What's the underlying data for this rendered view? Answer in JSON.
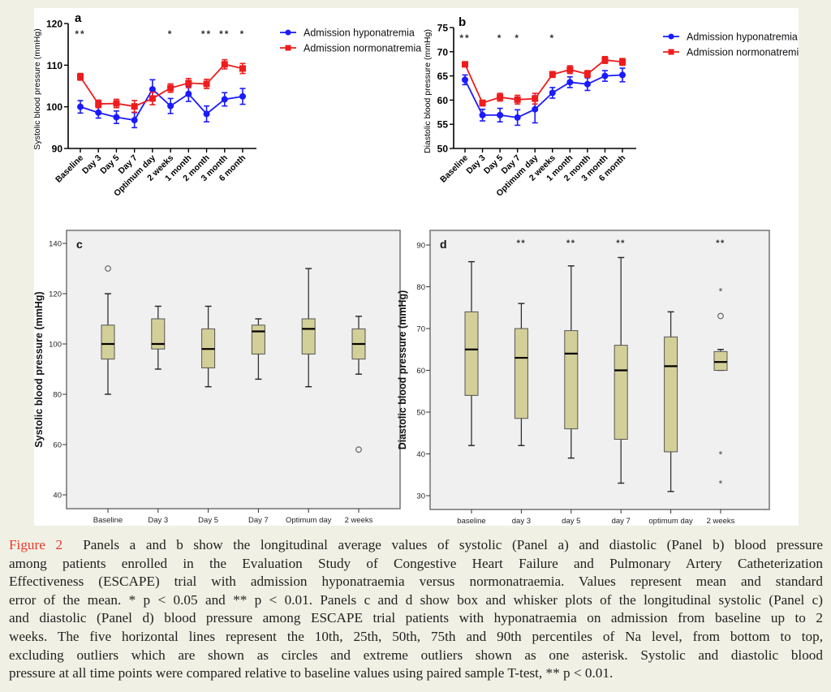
{
  "chart_data": [
    {
      "panel": "a",
      "type": "line",
      "title": "a",
      "xlabel": "",
      "ylabel": "Systolic blood pressure (mmHg)",
      "ylim": [
        90,
        120
      ],
      "yticks": [
        90,
        100,
        110,
        120
      ],
      "categories": [
        "Baseline",
        "Day 3",
        "Day 5",
        "Day 7",
        "Optimum day",
        "2 weeks",
        "1 month",
        "2 month",
        "3 month",
        "6 month"
      ],
      "significance": [
        "**",
        "",
        "",
        "",
        "",
        "*",
        "",
        "**",
        "**",
        "*"
      ],
      "legend_position": "top-right",
      "error_bars": "SEM",
      "series": [
        {
          "name": "Admission hyponatremia",
          "color": "#1a1aff",
          "marker": "circle",
          "values": [
            100.0,
            98.6,
            97.5,
            96.8,
            104.2,
            100.2,
            103.1,
            98.3,
            101.8,
            102.5
          ],
          "errors": [
            1.5,
            1.3,
            1.5,
            1.8,
            2.3,
            1.8,
            1.8,
            1.9,
            1.6,
            1.9
          ]
        },
        {
          "name": "Admission normonatremia",
          "color": "#ee1c1c",
          "marker": "square",
          "values": [
            107.2,
            100.7,
            100.8,
            100.1,
            102.0,
            104.5,
            105.7,
            105.5,
            110.2,
            109.2
          ],
          "errors": [
            0.8,
            0.9,
            1.0,
            1.4,
            1.5,
            1.0,
            1.1,
            1.1,
            1.1,
            1.2
          ]
        }
      ]
    },
    {
      "panel": "b",
      "type": "line",
      "title": "b",
      "xlabel": "",
      "ylabel": "Diastolic blood pressure (mmHg)",
      "ylim": [
        50,
        75
      ],
      "yticks": [
        50,
        55,
        60,
        65,
        70,
        75
      ],
      "categories": [
        "Baseline",
        "Day 3",
        "Day 5",
        "Day 7",
        "Optimum day",
        "2 weeks",
        "1 month",
        "2 month",
        "3 month",
        "6 month"
      ],
      "significance": [
        "**",
        "",
        "*",
        "*",
        "",
        "*",
        "",
        "",
        "",
        ""
      ],
      "legend_position": "top-right",
      "error_bars": "SEM",
      "series": [
        {
          "name": "Admission hyponatremia",
          "color": "#1a1aff",
          "marker": "circle",
          "values": [
            64.2,
            56.9,
            56.9,
            56.4,
            58.1,
            61.5,
            63.7,
            63.3,
            65.0,
            65.2
          ],
          "errors": [
            1.0,
            1.2,
            1.4,
            1.6,
            2.8,
            1.1,
            1.1,
            1.3,
            1.1,
            1.4
          ]
        },
        {
          "name": "Admission normonatremia",
          "color": "#ee1c1c",
          "marker": "square",
          "values": [
            67.4,
            59.4,
            60.6,
            60.1,
            60.3,
            65.3,
            66.3,
            65.4,
            68.3,
            67.9
          ],
          "errors": [
            0.5,
            0.6,
            0.8,
            0.9,
            1.1,
            0.6,
            0.8,
            0.7,
            0.7,
            0.7
          ]
        }
      ]
    },
    {
      "panel": "c",
      "type": "box",
      "title": "c",
      "xlabel": "",
      "ylabel": "Systolic blood pressure (mmHg)",
      "ylim": [
        35,
        145
      ],
      "yticks": [
        40,
        60,
        80,
        100,
        120,
        140
      ],
      "grid": false,
      "box_color": "#d3cf98",
      "categories": [
        "Baseline",
        "Day 3",
        "Day 5",
        "Day 7",
        "Optimum day",
        "2 weeks"
      ],
      "boxes": [
        {
          "whisker_low": 80,
          "q1": 94,
          "median": 100,
          "q3": 107.5,
          "whisker_high": 120
        },
        {
          "whisker_low": 90,
          "q1": 98,
          "median": 100,
          "q3": 110,
          "whisker_high": 115
        },
        {
          "whisker_low": 83,
          "q1": 90.5,
          "median": 98,
          "q3": 106,
          "whisker_high": 115
        },
        {
          "whisker_low": 86,
          "q1": 96,
          "median": 105,
          "q3": 107.5,
          "whisker_high": 110
        },
        {
          "whisker_low": 83,
          "q1": 96,
          "median": 106,
          "q3": 110,
          "whisker_high": 130
        },
        {
          "whisker_low": 88,
          "q1": 94,
          "median": 100,
          "q3": 106,
          "whisker_high": 111
        }
      ],
      "outliers": [
        {
          "category": "Baseline",
          "value": 130,
          "kind": "circle"
        },
        {
          "category": "2 weeks",
          "value": 58,
          "kind": "circle"
        }
      ],
      "significance": [
        "",
        "",
        "",
        "",
        "",
        ""
      ]
    },
    {
      "panel": "d",
      "type": "box",
      "title": "d",
      "xlabel": "",
      "ylabel": "Diastolic blood pressure (mmHg)",
      "ylim": [
        26.5,
        93.5
      ],
      "yticks": [
        30,
        40,
        50,
        60,
        70,
        80,
        90
      ],
      "grid": false,
      "box_color": "#d3cf98",
      "categories": [
        "baseline",
        "day 3",
        "day 5",
        "day 7",
        "optimum day",
        "2 weeks"
      ],
      "boxes": [
        {
          "whisker_low": 42,
          "q1": 54,
          "median": 65,
          "q3": 74,
          "whisker_high": 86
        },
        {
          "whisker_low": 42,
          "q1": 48.5,
          "median": 63,
          "q3": 70,
          "whisker_high": 76
        },
        {
          "whisker_low": 39,
          "q1": 46,
          "median": 64,
          "q3": 69.5,
          "whisker_high": 85
        },
        {
          "whisker_low": 33,
          "q1": 43.5,
          "median": 60,
          "q3": 66,
          "whisker_high": 87
        },
        {
          "whisker_low": 31,
          "q1": 40.5,
          "median": 61,
          "q3": 68,
          "whisker_high": 74
        },
        {
          "whisker_low": 60,
          "q1": 60,
          "median": 62,
          "q3": 64.5,
          "whisker_high": 65
        }
      ],
      "outliers": [
        {
          "category": "2 weeks",
          "value": 79,
          "kind": "asterisk"
        },
        {
          "category": "2 weeks",
          "value": 73,
          "kind": "circle"
        },
        {
          "category": "2 weeks",
          "value": 40,
          "kind": "asterisk"
        },
        {
          "category": "2 weeks",
          "value": 33,
          "kind": "asterisk"
        }
      ],
      "significance": [
        "",
        "**",
        "**",
        "**",
        "",
        "**"
      ]
    }
  ],
  "caption": {
    "figure_label": "Figure 2",
    "lines": [
      "Panels a and b show the longitudinal average values of systolic (Panel a) and diastolic (Panel b) blood pressure",
      "among patients enrolled in the Evaluation Study of Congestive Heart Failure and Pulmonary Artery Catheterization",
      "Effectiveness (ESCAPE) trial with admission hyponatraemia versus normonatraemia. Values represent mean and standard",
      "error of the mean. * p < 0.05 and ** p < 0.01. Panels c and d show box and whisker plots of the longitudinal systolic (Panel c)",
      "and diastolic (Panel d) blood pressure among ESCAPE trial patients with hyponatraemia on admission from baseline up to 2",
      "weeks. The five horizontal lines represent the 10th, 25th, 50th, 75th and 90th percentiles of Na level, from bottom to top,",
      "excluding outliers which are shown as circles and extreme outliers shown as one asterisk. Systolic and diastolic blood",
      "pressure at all time points were compared relative to baseline values using paired sample T-test, ** p < 0.01."
    ]
  }
}
